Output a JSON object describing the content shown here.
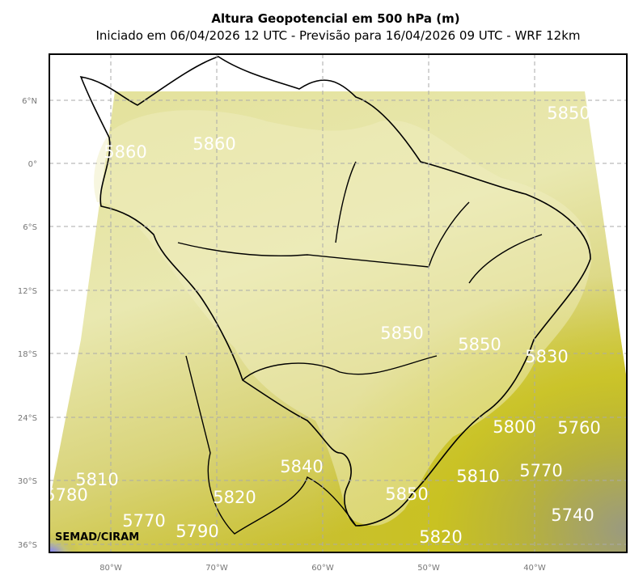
{
  "header": {
    "title": "Altura Geopotencial em 500 hPa (m)",
    "subtitle": "Iniciado em 06/04/2026 12 UTC - Previsão para 16/04/2026 09 UTC - WRF 12km"
  },
  "map": {
    "lat_labels": [
      "6°N",
      "0°",
      "6°S",
      "12°S",
      "18°S",
      "24°S",
      "30°S",
      "36°S"
    ],
    "lon_labels": [
      "80°W",
      "70°W",
      "60°W",
      "50°W",
      "40°W"
    ],
    "contour_labels": [
      "5850",
      "5860",
      "5860",
      "5850",
      "5850",
      "5830",
      "5800",
      "5760",
      "5770",
      "5740",
      "5810",
      "5850",
      "5820",
      "5840",
      "5820",
      "5810",
      "5770",
      "5790",
      "5780"
    ],
    "watermark": "SEMAD/CIRAM"
  }
}
